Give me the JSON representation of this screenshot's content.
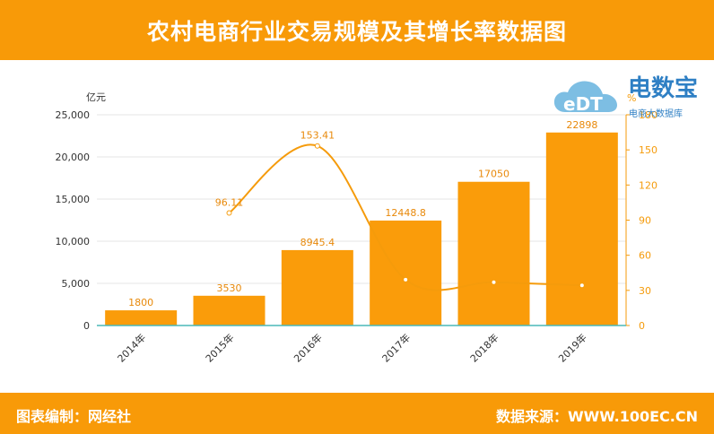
{
  "header": {
    "title": "农村电商行业交易规模及其增长率数据图"
  },
  "footer": {
    "left": "图表编制：网经社",
    "right": "数据来源：WWW.100EC.CN"
  },
  "logo": {
    "badge": "eDT",
    "name": "电数宝",
    "subtitle": "电商大数据库"
  },
  "colors": {
    "accent": "#f89a08",
    "bar": "#fa9c0a",
    "axis_right": "#f59b0b",
    "baseline": "#4ab8b8"
  },
  "chart_data": {
    "type": "bar",
    "categories": [
      "2014年",
      "2015年",
      "2016年",
      "2017年",
      "2018年",
      "2019年"
    ],
    "series": [
      {
        "type": "bar",
        "axis": "left",
        "values": [
          1800,
          3530,
          8945.4,
          12448.8,
          17050,
          22898
        ],
        "labels": [
          "1800",
          "3530",
          "8945.4",
          "12448.8",
          "17050",
          "22898"
        ]
      },
      {
        "type": "line",
        "axis": "right",
        "values": [
          null,
          96.11,
          153.41,
          39.2,
          36.96,
          34.3
        ],
        "labels": [
          "",
          "96.11",
          "153.41",
          "",
          "",
          ""
        ]
      }
    ],
    "y_left": {
      "unit": "亿元",
      "min": 0,
      "max": 25000,
      "ticks": [
        "0",
        "5,000",
        "10,000",
        "15,000",
        "20,000",
        "25,000"
      ]
    },
    "y_right": {
      "unit": "%",
      "min": 0,
      "max": 180,
      "ticks": [
        "0",
        "30",
        "60",
        "90",
        "120",
        "150",
        "180"
      ]
    },
    "grid": true
  }
}
